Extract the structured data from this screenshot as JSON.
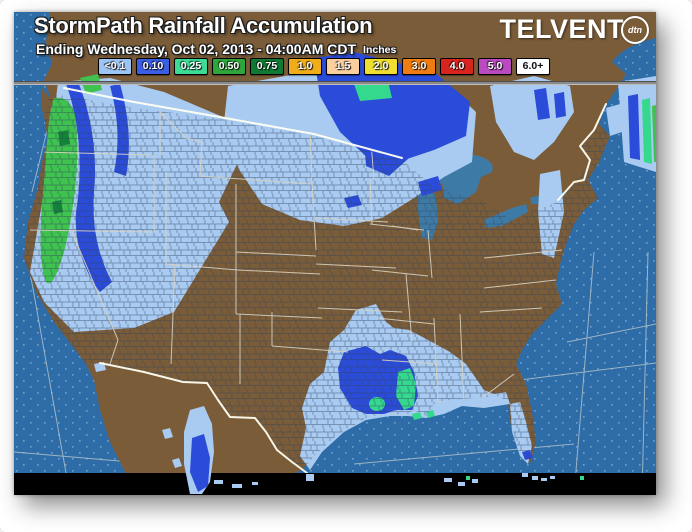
{
  "header": {
    "title": "StormPath Rainfall Accumulation",
    "subtitle": "Ending Wednesday, Oct 02, 2013 - 04:00AM CDT",
    "units_label": "Inches"
  },
  "logo": {
    "text": "TELVENT",
    "badge": "dtn"
  },
  "legend": {
    "items": [
      {
        "label": "<0.1",
        "color": "#9CC4F5",
        "text_color": "#FFFFFF"
      },
      {
        "label": "0.10",
        "color": "#3B5EE4",
        "text_color": "#FFFFFF"
      },
      {
        "label": "0.25",
        "color": "#3CDC97",
        "text_color": "#FFFFFF"
      },
      {
        "label": "0.50",
        "color": "#2EA63C",
        "text_color": "#FFFFFF"
      },
      {
        "label": "0.75",
        "color": "#0E7A33",
        "text_color": "#FFFFFF"
      },
      {
        "label": "1.0",
        "color": "#EFAE19",
        "text_color": "#FFFFFF"
      },
      {
        "label": "1.5",
        "color": "#FBCF9E",
        "text_color": "#FFFFFF"
      },
      {
        "label": "2.0",
        "color": "#EFDE31",
        "text_color": "#FFFFFF"
      },
      {
        "label": "3.0",
        "color": "#F07D12",
        "text_color": "#FFFFFF"
      },
      {
        "label": "4.0",
        "color": "#D7241F",
        "text_color": "#FFFFFF"
      },
      {
        "label": "5.0",
        "color": "#B94ABF",
        "text_color": "#FFFFFF"
      },
      {
        "label": "6.0+",
        "color": "#FFFFFF",
        "text_color": "#111111"
      }
    ]
  },
  "map": {
    "colors": {
      "ocean": "#2E6CA7",
      "ocean_dots": "#6FA3CF",
      "land": "#7B5C38",
      "lakes": "#3E7AA6",
      "graticule": "#B9C6CC",
      "county_line": "#33435C",
      "state_line": "#D8D2C0",
      "border_line": "#FFFFF2",
      "offmap": "#000000",
      "precip_lt01": "#A9CBF2",
      "precip_010": "#2B4BD9",
      "precip_025": "#35D98E",
      "precip_050": "#3FC24F",
      "precip_075": "#128437"
    }
  }
}
